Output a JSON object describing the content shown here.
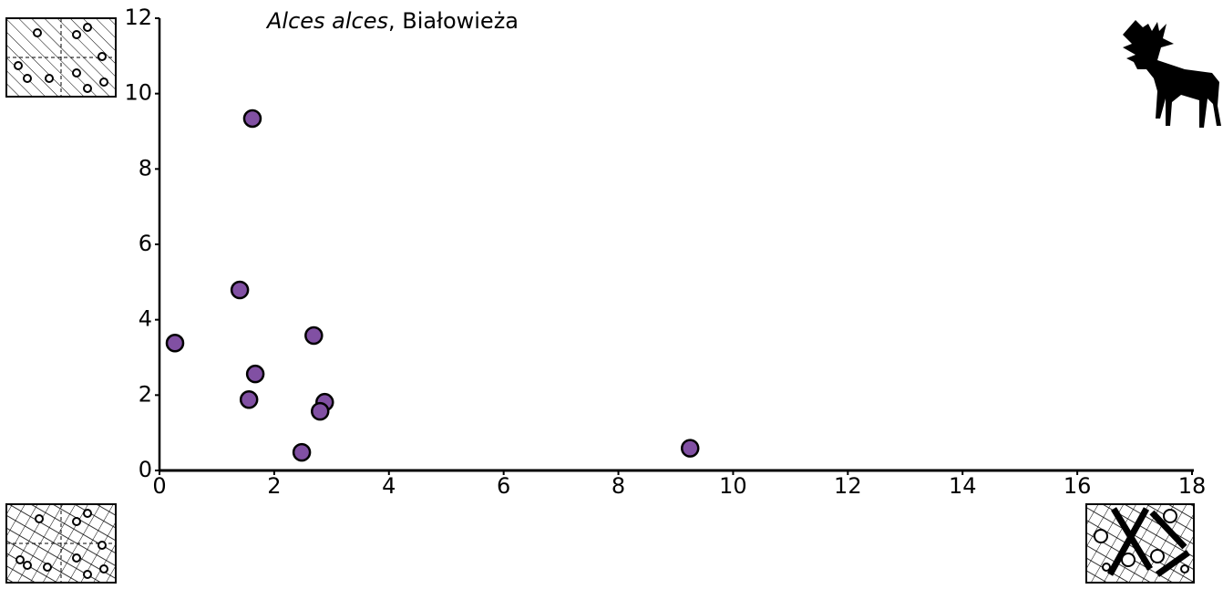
{
  "chart_data": {
    "type": "scatter",
    "title": [
      "Alces alces",
      ", Białowieża"
    ],
    "x": [
      1.62,
      1.4,
      0.27,
      2.69,
      1.67,
      1.56,
      2.88,
      2.8,
      2.48,
      9.25
    ],
    "values": [
      9.34,
      4.79,
      3.38,
      3.58,
      2.56,
      1.88,
      1.81,
      1.57,
      0.48,
      0.59
    ],
    "color": "#8150a3",
    "xlim": [
      0,
      18
    ],
    "xticks": [
      0,
      2,
      4,
      6,
      8,
      10,
      12,
      14,
      16,
      18
    ],
    "ylim": [
      0,
      12
    ],
    "yticks": [
      0,
      2,
      4,
      6,
      8,
      10,
      12
    ],
    "grid": false
  }
}
